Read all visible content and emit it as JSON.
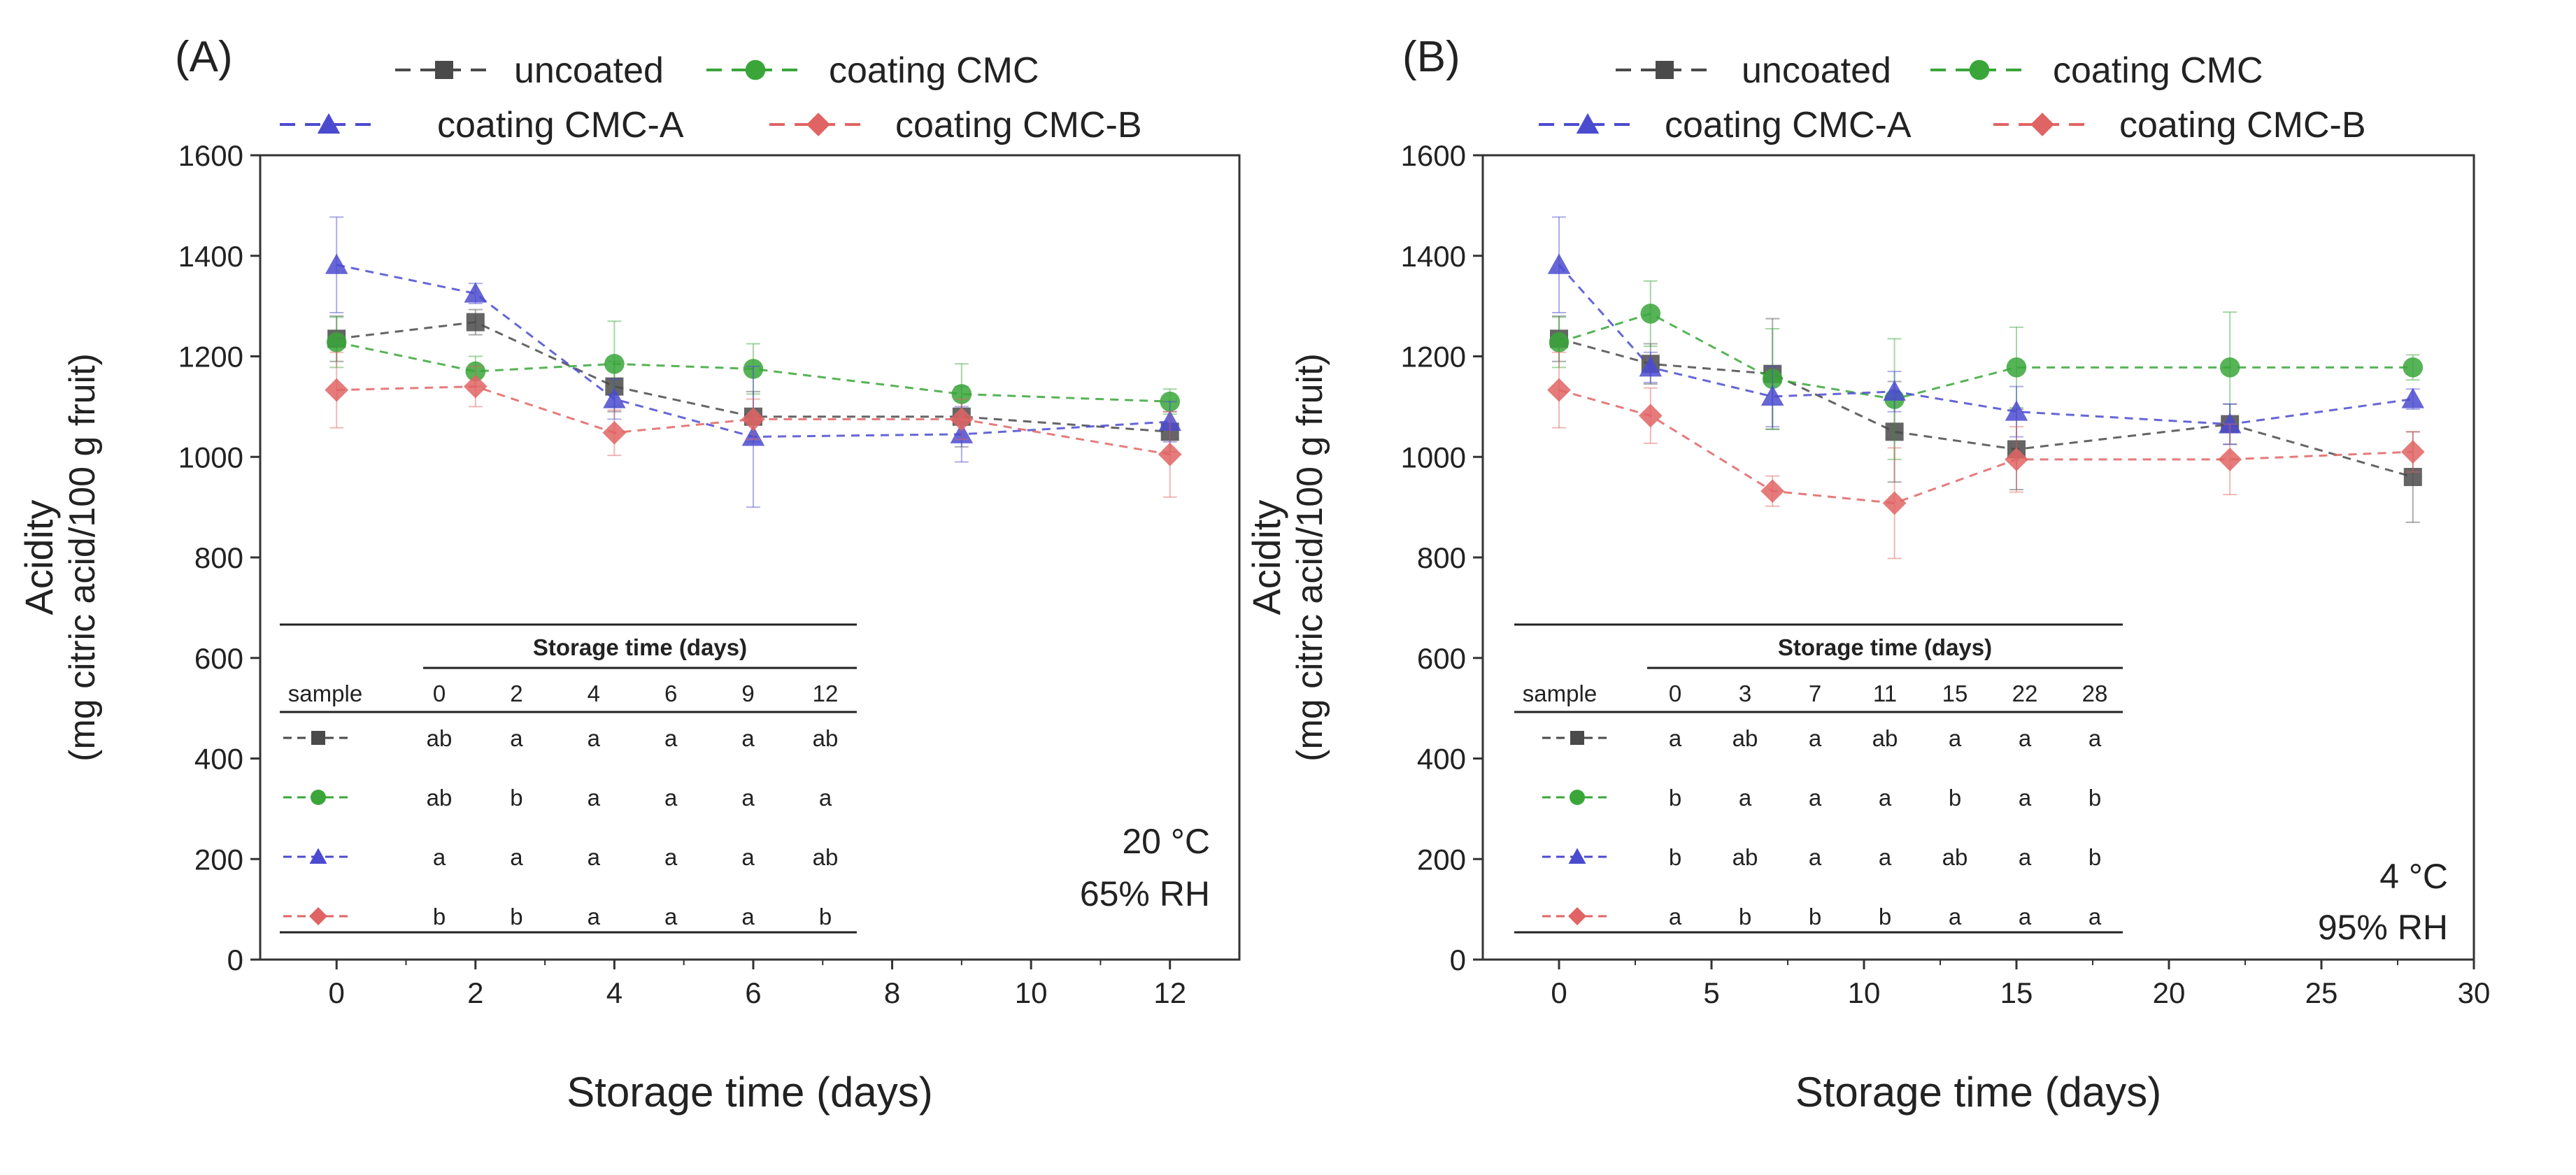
{
  "chart_data": [
    {
      "type": "line",
      "panel_label": "(A)",
      "xlabel": "Storage time (days)",
      "ylabel_line1": "Acidity",
      "ylabel_line2": "(mg citric acid/100 g fruit)",
      "xlim": [
        -1.1,
        13.0
      ],
      "ylim": [
        0,
        1600
      ],
      "xticks": [
        0,
        2,
        4,
        6,
        8,
        10,
        12
      ],
      "yticks": [
        0,
        200,
        400,
        600,
        800,
        1000,
        1200,
        1400,
        1600
      ],
      "condition_line1": "20 °C",
      "condition_line2": "65% RH",
      "x": [
        0,
        2,
        4,
        6,
        9,
        12
      ],
      "series": [
        {
          "name": "uncoated",
          "color": "#4a4a4a",
          "marker": "square",
          "values": [
            1235,
            1268,
            1140,
            1080,
            1080,
            1050
          ],
          "errors": [
            45,
            25,
            50,
            50,
            60,
            40
          ]
        },
        {
          "name": "coating CMC",
          "color": "#3aa63a",
          "marker": "circle",
          "values": [
            1228,
            1170,
            1185,
            1175,
            1125,
            1110
          ],
          "errors": [
            50,
            30,
            85,
            50,
            60,
            25
          ]
        },
        {
          "name": "coating CMC-A",
          "color": "#4b4bd0",
          "marker": "triangle",
          "values": [
            1382,
            1325,
            1115,
            1040,
            1045,
            1070
          ],
          "errors": [
            95,
            20,
            40,
            140,
            55,
            40
          ]
        },
        {
          "name": "coating CMC-B",
          "color": "#e06464",
          "marker": "diamond",
          "values": [
            1133,
            1140,
            1048,
            1075,
            1075,
            1005
          ],
          "errors": [
            75,
            40,
            45,
            40,
            40,
            85
          ]
        }
      ],
      "table": {
        "title": "Storage time (days)",
        "header_label": "sample",
        "columns": [
          "0",
          "2",
          "4",
          "6",
          "9",
          "12"
        ],
        "rows": [
          [
            "ab",
            "a",
            "a",
            "a",
            "a",
            "ab"
          ],
          [
            "ab",
            "b",
            "a",
            "a",
            "a",
            "a"
          ],
          [
            "a",
            "a",
            "a",
            "a",
            "a",
            "ab"
          ],
          [
            "b",
            "b",
            "a",
            "a",
            "a",
            "b"
          ]
        ]
      }
    },
    {
      "type": "line",
      "panel_label": "(B)",
      "xlabel": "Storage time (days)",
      "ylabel_line1": "Acidity",
      "ylabel_line2": "(mg citric acid/100 g fruit)",
      "xlim": [
        -2.5,
        30
      ],
      "ylim": [
        0,
        1600
      ],
      "xticks": [
        0,
        5,
        10,
        15,
        20,
        25,
        30
      ],
      "yticks": [
        0,
        200,
        400,
        600,
        800,
        1000,
        1200,
        1400,
        1600
      ],
      "condition_line1": "4 °C",
      "condition_line2": "95% RH",
      "x": [
        0,
        3,
        7,
        11,
        15,
        22,
        28
      ],
      "series": [
        {
          "name": "uncoated",
          "color": "#4a4a4a",
          "marker": "square",
          "values": [
            1235,
            1185,
            1165,
            1050,
            1015,
            1065,
            960
          ],
          "errors": [
            45,
            40,
            110,
            100,
            80,
            40,
            90
          ]
        },
        {
          "name": "coating CMC",
          "color": "#3aa63a",
          "marker": "circle",
          "values": [
            1228,
            1285,
            1155,
            1115,
            1178,
            1178,
            1178
          ],
          "errors": [
            50,
            65,
            100,
            120,
            80,
            110,
            25
          ]
        },
        {
          "name": "coating CMC-A",
          "color": "#4b4bd0",
          "marker": "triangle",
          "values": [
            1382,
            1178,
            1120,
            1130,
            1090,
            1065,
            1115
          ],
          "errors": [
            95,
            30,
            60,
            40,
            50,
            40,
            20
          ]
        },
        {
          "name": "coating CMC-B",
          "color": "#e06464",
          "marker": "diamond",
          "values": [
            1133,
            1082,
            932,
            908,
            995,
            995,
            1010
          ],
          "errors": [
            75,
            55,
            30,
            110,
            65,
            70,
            40
          ]
        }
      ],
      "table": {
        "title": "Storage time (days)",
        "header_label": "sample",
        "columns": [
          "0",
          "3",
          "7",
          "11",
          "15",
          "22",
          "28"
        ],
        "rows": [
          [
            "a",
            "ab",
            "a",
            "ab",
            "a",
            "a",
            "a"
          ],
          [
            "b",
            "a",
            "a",
            "a",
            "b",
            "a",
            "b"
          ],
          [
            "b",
            "ab",
            "a",
            "a",
            "ab",
            "a",
            "b"
          ],
          [
            "a",
            "b",
            "b",
            "b",
            "a",
            "a",
            "a"
          ]
        ]
      }
    }
  ]
}
